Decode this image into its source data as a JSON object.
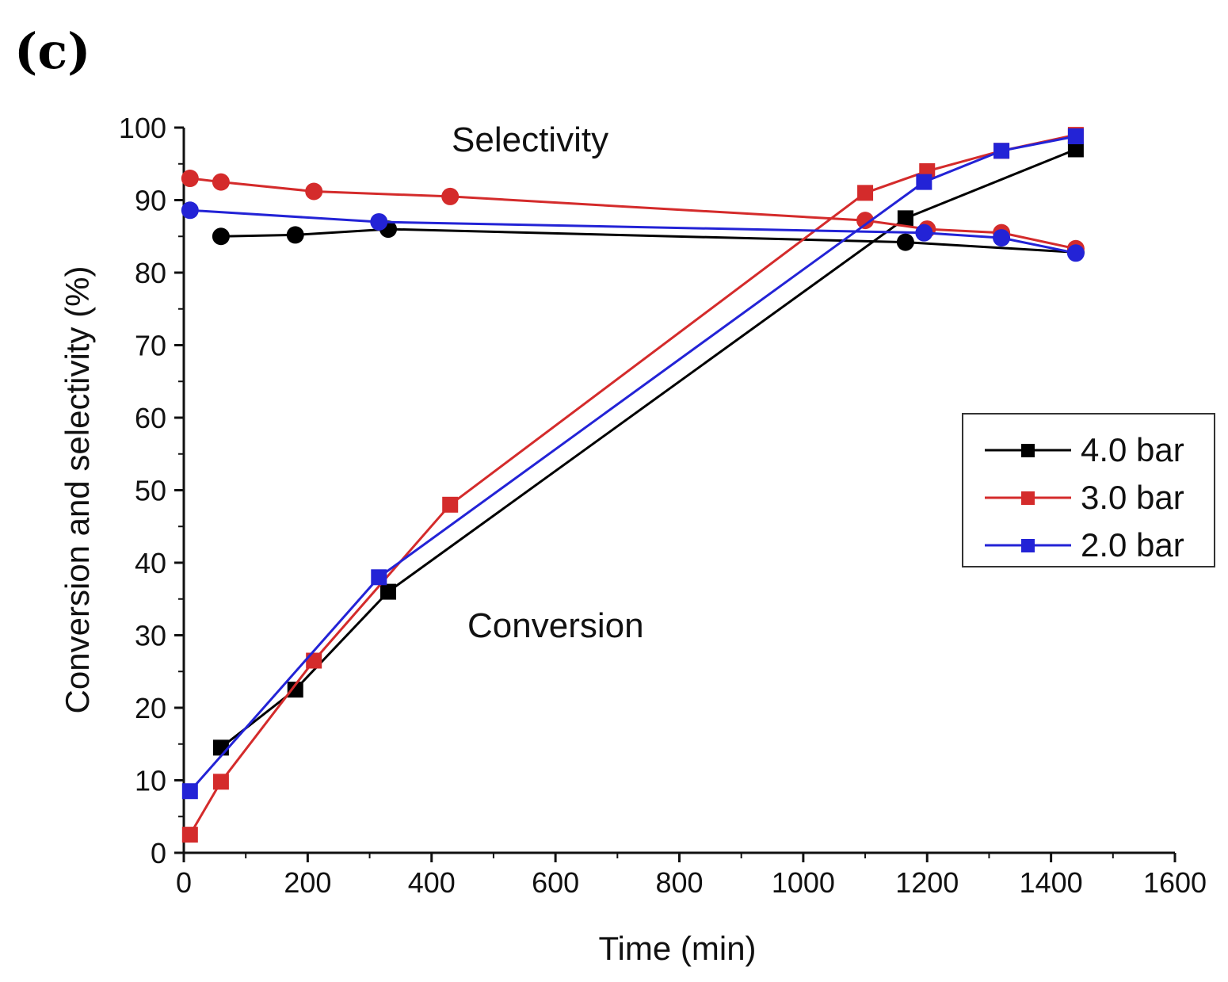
{
  "panel_label": "(c)",
  "chart_data": {
    "type": "line",
    "title": "",
    "xlabel": "Time (min)",
    "ylabel": "Conversion and selectivity (%)",
    "xlim": [
      0,
      1600
    ],
    "ylim": [
      0,
      100
    ],
    "xticks": [
      0,
      200,
      400,
      600,
      800,
      1000,
      1200,
      1400,
      1600
    ],
    "yticks": [
      0,
      10,
      20,
      30,
      40,
      50,
      60,
      70,
      80,
      90,
      100
    ],
    "grid": false,
    "legend_position": "right",
    "annotations": [
      {
        "text": "Selectivity",
        "x": 575,
        "y": 97
      },
      {
        "text": "Conversion",
        "x": 620,
        "y": 30
      }
    ],
    "series": [
      {
        "name": "4.0 bar",
        "color": "#000000",
        "conversion": {
          "x": [
            60,
            180,
            330,
            1165,
            1440
          ],
          "y": [
            14.5,
            22.5,
            36,
            87.5,
            97
          ]
        },
        "selectivity": {
          "x": [
            60,
            180,
            330,
            1165,
            1440
          ],
          "y": [
            85,
            85.2,
            86,
            84.2,
            82.8
          ]
        }
      },
      {
        "name": "3.0 bar",
        "color": "#d42b2b",
        "conversion": {
          "x": [
            10,
            60,
            210,
            430,
            1100,
            1200,
            1320,
            1440
          ],
          "y": [
            2.5,
            9.8,
            26.5,
            48,
            91,
            94,
            96.8,
            99
          ]
        },
        "selectivity": {
          "x": [
            10,
            60,
            210,
            430,
            1100,
            1200,
            1320,
            1440
          ],
          "y": [
            93,
            92.5,
            91.2,
            90.5,
            87.2,
            86,
            85.5,
            83.3
          ]
        }
      },
      {
        "name": "2.0 bar",
        "color": "#2323d6",
        "conversion": {
          "x": [
            10,
            315,
            1195,
            1320,
            1440
          ],
          "y": [
            8.5,
            38,
            92.5,
            96.8,
            98.8
          ]
        },
        "selectivity": {
          "x": [
            10,
            315,
            1195,
            1320,
            1440
          ],
          "y": [
            88.6,
            87,
            85.5,
            84.8,
            82.7
          ]
        }
      }
    ]
  }
}
